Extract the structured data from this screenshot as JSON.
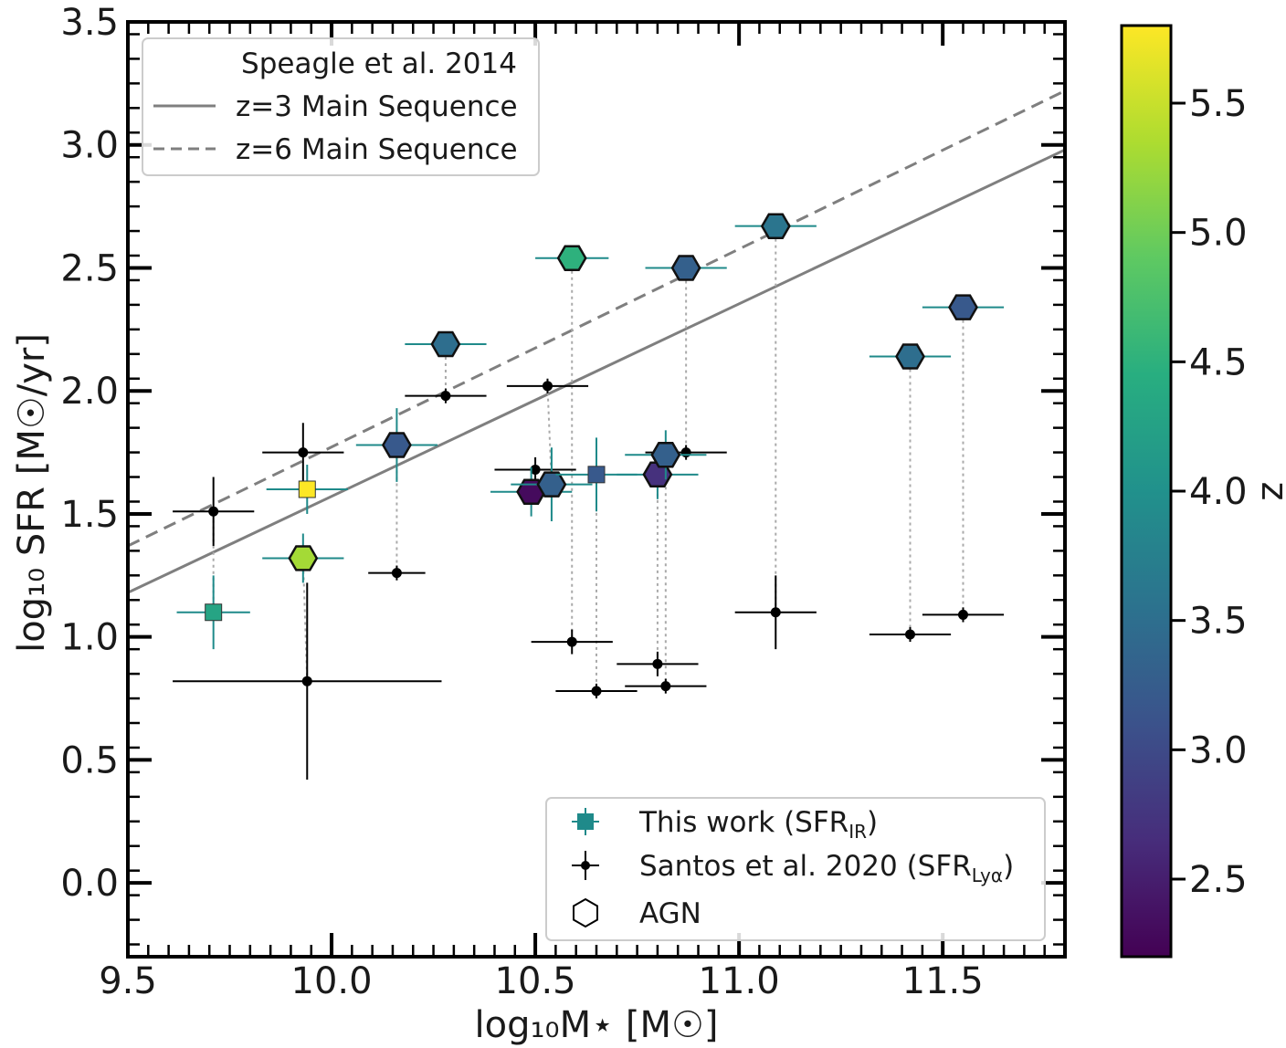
{
  "chart_data": {
    "type": "scatter",
    "xlabel": "log₁₀M⋆ [M☉]",
    "ylabel": "log₁₀ SFR [M☉/yr]",
    "xlim": [
      9.5,
      11.8
    ],
    "ylim": [
      -0.3,
      3.5
    ],
    "x_ticks": [
      "9.5",
      "10.0",
      "10.5",
      "11.0",
      "11.5"
    ],
    "y_ticks": [
      "0.0",
      "0.5",
      "1.0",
      "1.5",
      "2.0",
      "2.5",
      "3.0",
      "3.5"
    ],
    "colorbar": {
      "label": "z",
      "range": [
        2.2,
        5.8
      ],
      "ticks": [
        "2.5",
        "3.0",
        "3.5",
        "4.0",
        "4.5",
        "5.0",
        "5.5"
      ],
      "colormap": "viridis"
    },
    "lines_legend": {
      "title": "Speagle et al. 2014",
      "entries": [
        "z=3 Main Sequence",
        "z=6 Main Sequence"
      ]
    },
    "main_sequence_lines": [
      {
        "name": "z=3 Main Sequence",
        "style": "solid",
        "color": "#7f7f7f",
        "x": [
          9.5,
          11.8
        ],
        "y": [
          1.18,
          2.98
        ]
      },
      {
        "name": "z=6 Main Sequence",
        "style": "dashed",
        "color": "#7f7f7f",
        "x": [
          9.5,
          11.8
        ],
        "y": [
          1.37,
          3.22
        ]
      }
    ],
    "markers_legend": {
      "entries": [
        {
          "text": "This work (SFR",
          "sub": "IR",
          "tail": ")"
        },
        {
          "text": "Santos et al. 2020 (SFR",
          "sub": "Lyα",
          "tail": ")"
        },
        {
          "text": "AGN",
          "sub": "",
          "tail": ""
        }
      ]
    },
    "series": [
      {
        "name": "This work (SFR_IR)",
        "points": [
          {
            "x": 9.71,
            "y": 1.1,
            "z": 4.3,
            "xerr": 0.09,
            "yerr": 0.15,
            "agn": false
          },
          {
            "x": 9.94,
            "y": 1.6,
            "z": 5.8,
            "xerr": 0.1,
            "yerr": 0.1,
            "agn": false
          },
          {
            "x": 9.93,
            "y": 1.32,
            "z": 5.3,
            "xerr": 0.1,
            "yerr": 0.1,
            "agn": true
          },
          {
            "x": 10.16,
            "y": 1.78,
            "z": 3.2,
            "xerr": 0.1,
            "yerr": 0.15,
            "agn": true
          },
          {
            "x": 10.28,
            "y": 2.19,
            "z": 3.5,
            "xerr": 0.1,
            "yerr": 0.04,
            "agn": true
          },
          {
            "x": 10.49,
            "y": 1.59,
            "z": 2.3,
            "xerr": 0.1,
            "yerr": 0.1,
            "agn": true
          },
          {
            "x": 10.54,
            "y": 1.62,
            "z": 3.3,
            "xerr": 0.1,
            "yerr": 0.15,
            "agn": true
          },
          {
            "x": 10.59,
            "y": 2.54,
            "z": 4.5,
            "xerr": 0.09,
            "yerr": 0.03,
            "agn": true
          },
          {
            "x": 10.65,
            "y": 1.66,
            "z": 3.2,
            "xerr": 0.1,
            "yerr": 0.15,
            "agn": false
          },
          {
            "x": 10.8,
            "y": 1.66,
            "z": 2.7,
            "xerr": 0.1,
            "yerr": 0.1,
            "agn": true
          },
          {
            "x": 10.82,
            "y": 1.74,
            "z": 3.3,
            "xerr": 0.1,
            "yerr": 0.1,
            "agn": true
          },
          {
            "x": 10.87,
            "y": 2.5,
            "z": 3.3,
            "xerr": 0.1,
            "yerr": 0.03,
            "agn": true
          },
          {
            "x": 11.09,
            "y": 2.67,
            "z": 3.6,
            "xerr": 0.1,
            "yerr": 0.03,
            "agn": true
          },
          {
            "x": 11.42,
            "y": 2.14,
            "z": 3.5,
            "xerr": 0.1,
            "yerr": 0.03,
            "agn": true
          },
          {
            "x": 11.55,
            "y": 2.34,
            "z": 3.2,
            "xerr": 0.1,
            "yerr": 0.03,
            "agn": true
          }
        ]
      },
      {
        "name": "Santos et al. 2020 (SFR_Lyα)",
        "points": [
          {
            "x": 9.71,
            "y": 1.51,
            "xerr": 0.1,
            "yerr": 0.14,
            "link": 0
          },
          {
            "x": 9.93,
            "y": 1.75,
            "xerr": 0.1,
            "yerr": 0.12,
            "link": null
          },
          {
            "x": 9.94,
            "y": 0.82,
            "xerr": 0.33,
            "yerr": 0.4,
            "link": 2
          },
          {
            "x": 10.16,
            "y": 1.26,
            "xerr": 0.07,
            "yerr": 0.03,
            "link": 3
          },
          {
            "x": 10.28,
            "y": 1.98,
            "xerr": 0.1,
            "yerr": 0.03,
            "link": 4
          },
          {
            "x": 10.5,
            "y": 1.68,
            "xerr": 0.1,
            "yerr": 0.05,
            "link": null
          },
          {
            "x": 10.53,
            "y": 2.02,
            "xerr": 0.1,
            "yerr": 0.03,
            "link": 6
          },
          {
            "x": 10.59,
            "y": 0.98,
            "xerr": 0.1,
            "yerr": 0.05,
            "link": 7
          },
          {
            "x": 10.65,
            "y": 0.78,
            "xerr": 0.1,
            "yerr": 0.03,
            "link": 8
          },
          {
            "x": 10.8,
            "y": 0.89,
            "xerr": 0.1,
            "yerr": 0.05,
            "link": 9
          },
          {
            "x": 10.82,
            "y": 0.8,
            "xerr": 0.1,
            "yerr": 0.03,
            "link": 10
          },
          {
            "x": 10.87,
            "y": 1.75,
            "xerr": 0.1,
            "yerr": 0.03,
            "link": 11
          },
          {
            "x": 11.09,
            "y": 1.1,
            "xerr": 0.1,
            "yerr": 0.15,
            "link": 12
          },
          {
            "x": 11.42,
            "y": 1.01,
            "xerr": 0.1,
            "yerr": 0.03,
            "link": 13
          },
          {
            "x": 11.55,
            "y": 1.09,
            "xerr": 0.1,
            "yerr": 0.03,
            "link": 14
          }
        ]
      }
    ],
    "colors": {
      "this_work_legend": "#1f8a8a",
      "errorbar_this_work": "#1f8a8a",
      "santos": "#000000",
      "connector": "#aaaaaa",
      "ms_line": "#7f7f7f"
    }
  }
}
